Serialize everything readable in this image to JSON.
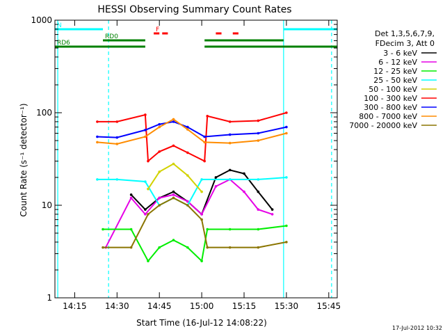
{
  "chart_data": {
    "type": "line",
    "title": "HESSI Observing Summary Count Rates",
    "xlabel": "Start Time (16-Jul-12 14:08:22)",
    "ylabel": "Count Rate (s⁻¹ detector⁻¹)",
    "yscale": "log",
    "ylim": [
      1,
      1000
    ],
    "xlim": [
      "14:08",
      "15:48"
    ],
    "x_ticks": [
      "14:15",
      "14:30",
      "14:45",
      "15:00",
      "15:15",
      "15:30",
      "15:45"
    ],
    "y_ticks": [
      "1",
      "10",
      "100",
      "1000"
    ],
    "legend_header": [
      "Det 1,3,5,6,7,9,",
      "FDecim 3, Att 0"
    ],
    "legend_position": "right",
    "series": [
      {
        "name": "3 - 6 keV",
        "color": "#000000",
        "x": [
          "14:26",
          "14:35",
          "14:40",
          "14:45",
          "14:50",
          "14:55",
          "15:00",
          "15:05",
          "15:10",
          "15:15",
          "15:20",
          "15:25"
        ],
        "y": [
          null,
          13,
          9,
          12,
          14,
          11,
          8,
          20,
          24,
          22,
          14,
          9
        ]
      },
      {
        "name": "6 - 12 keV",
        "color": "#e600e6",
        "x": [
          "14:26",
          "14:35",
          "14:40",
          "14:45",
          "14:50",
          "14:55",
          "15:00",
          "15:05",
          "15:10",
          "15:15",
          "15:20",
          "15:25"
        ],
        "y": [
          3.5,
          12,
          8,
          12,
          13,
          11,
          8,
          16,
          19,
          14,
          9,
          8
        ]
      },
      {
        "name": "12 - 25 keV",
        "color": "#00ee00",
        "x": [
          "14:25",
          "14:35",
          "14:41",
          "14:45",
          "14:50",
          "14:55",
          "15:00",
          "15:02",
          "15:10",
          "15:20",
          "15:30"
        ],
        "y": [
          5.5,
          5.5,
          2.5,
          3.5,
          4.2,
          3.5,
          2.5,
          5.5,
          5.5,
          5.5,
          6
        ]
      },
      {
        "name": "25 - 50 keV",
        "color": "#00ffff",
        "x": [
          "14:23",
          "14:30",
          "14:40",
          "14:45",
          "14:50",
          "14:55",
          "15:00",
          "15:10",
          "15:20",
          "15:30"
        ],
        "y": [
          19,
          19,
          18,
          10,
          12,
          10,
          19,
          19,
          19,
          20
        ]
      },
      {
        "name": "50 - 100 keV",
        "color": "#d2d200",
        "x": [
          "14:41",
          "14:45",
          "14:50",
          "14:55",
          "15:00"
        ],
        "y": [
          15,
          23,
          28,
          21,
          14
        ]
      },
      {
        "name": "100 - 300 keV",
        "color": "#ff0000",
        "x": [
          "14:23",
          "14:30",
          "14:40",
          "14:41",
          "14:45",
          "14:50",
          "14:55",
          "15:01",
          "15:02",
          "15:10",
          "15:20",
          "15:30"
        ],
        "y": [
          80,
          80,
          95,
          30,
          38,
          44,
          37,
          30,
          92,
          80,
          82,
          100
        ]
      },
      {
        "name": "300 - 800 keV",
        "color": "#0000ff",
        "x": [
          "14:23",
          "14:30",
          "14:40",
          "14:45",
          "14:50",
          "14:55",
          "15:01",
          "15:10",
          "15:20",
          "15:30"
        ],
        "y": [
          55,
          54,
          65,
          75,
          80,
          70,
          55,
          58,
          60,
          70
        ]
      },
      {
        "name": "800 - 7000 keV",
        "color": "#ff8c00",
        "x": [
          "14:23",
          "14:30",
          "14:40",
          "14:45",
          "14:50",
          "14:55",
          "15:01",
          "15:10",
          "15:20",
          "15:30"
        ],
        "y": [
          48,
          46,
          55,
          70,
          85,
          66,
          48,
          47,
          50,
          60
        ]
      },
      {
        "name": "7000 - 20000 keV",
        "color": "#8b7500",
        "x": [
          "14:25",
          "14:35",
          "14:41",
          "14:45",
          "14:50",
          "14:55",
          "15:00",
          "15:02",
          "15:10",
          "15:20",
          "15:30"
        ],
        "y": [
          3.5,
          3.5,
          8,
          10,
          12,
          10,
          7,
          3.5,
          3.5,
          3.5,
          4
        ]
      }
    ],
    "flags": {
      "N": {
        "label": "N",
        "color": "#00ffff",
        "spans": [
          [
            "14:08",
            "14:25"
          ],
          [
            "15:29",
            "15:48"
          ]
        ]
      },
      "F": {
        "label": "F",
        "color": "#ff0000",
        "spans": [
          [
            "14:43",
            "14:45"
          ],
          [
            "14:46",
            "14:48"
          ],
          [
            "15:05",
            "15:07"
          ],
          [
            "15:11",
            "15:13"
          ]
        ]
      },
      "RD0": {
        "label": "RD0",
        "color": "#008000",
        "spans": [
          [
            "14:25",
            "14:40"
          ],
          [
            "15:01",
            "15:29"
          ]
        ]
      },
      "RD6": {
        "label": "RD6",
        "color": "#008000",
        "spans": [
          [
            "14:08",
            "14:40"
          ],
          [
            "15:01",
            "15:48"
          ]
        ]
      }
    },
    "vertical_lines": [
      {
        "color": "#00ffff",
        "style": "solid",
        "x": [
          "14:09",
          "15:29"
        ]
      },
      {
        "color": "#00ffff",
        "style": "dashed",
        "x": [
          "14:27",
          "15:46"
        ]
      }
    ],
    "footer_date": "17-Jul-2012 10:32"
  }
}
